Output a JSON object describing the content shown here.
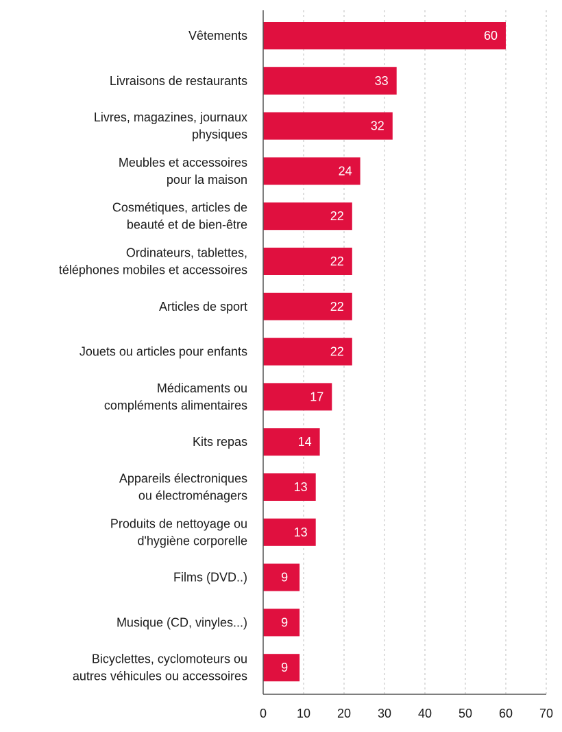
{
  "chart_data": {
    "type": "bar",
    "orientation": "horizontal",
    "title": "",
    "xlabel": "",
    "ylabel": "",
    "xlim": [
      0,
      70
    ],
    "xticks": [
      0,
      10,
      20,
      30,
      40,
      50,
      60,
      70
    ],
    "grid": "vertical dotted",
    "bar_color": "#e0103f",
    "categories": [
      [
        "Vêtements"
      ],
      [
        "Livraisons de restaurants"
      ],
      [
        "Livres, magazines, journaux",
        "physiques"
      ],
      [
        "Meubles et accessoires",
        "pour la maison"
      ],
      [
        "Cosmétiques, articles de",
        "beauté et de bien-être"
      ],
      [
        "Ordinateurs, tablettes,",
        "téléphones mobiles et accessoires"
      ],
      [
        "Articles de sport"
      ],
      [
        "Jouets ou articles pour enfants"
      ],
      [
        "Médicaments ou",
        "compléments alimentaires"
      ],
      [
        "Kits repas"
      ],
      [
        "Appareils électroniques",
        "ou électroménagers"
      ],
      [
        "Produits de nettoyage ou",
        "d'hygiène corporelle"
      ],
      [
        "Films (DVD..)"
      ],
      [
        "Musique (CD, vinyles...)"
      ],
      [
        "Bicyclettes, cyclomoteurs ou",
        "autres véhicules ou accessoires"
      ]
    ],
    "values": [
      60,
      33,
      32,
      24,
      22,
      22,
      22,
      22,
      17,
      14,
      13,
      13,
      9,
      9,
      9
    ]
  }
}
